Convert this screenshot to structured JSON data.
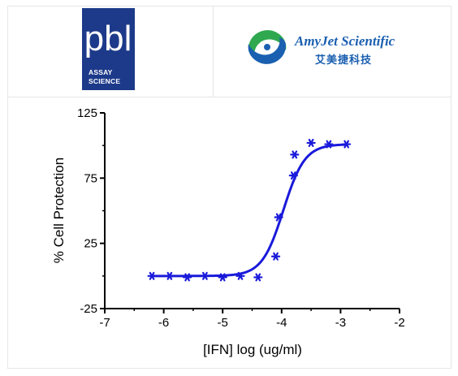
{
  "logos": {
    "pbl": {
      "mark": "pbl",
      "line1": "ASSAY",
      "line2": "SCIENCE",
      "bg_color": "#1d3a8a"
    },
    "amyjet": {
      "name": "AmyJet Scientific",
      "cn": "艾美捷科技",
      "color": "#1a5fb0",
      "icon": "amyjet-swirl-icon"
    }
  },
  "chart_data": {
    "type": "scatter",
    "title": "",
    "xlabel": "[IFN] log (ug/ml)",
    "ylabel": "% Cell Protection",
    "xlim": [
      -7,
      -2
    ],
    "ylim": [
      -25,
      125
    ],
    "xticks": [
      "-7",
      "-6",
      "-5",
      "-4",
      "-3",
      "-2"
    ],
    "yticks": [
      "-25",
      "25",
      "75",
      "125"
    ],
    "grid": false,
    "series": [
      {
        "color": "#1a1adb",
        "marker": "asterisk",
        "x": [
          -6.2,
          -5.9,
          -5.6,
          -5.3,
          -5.0,
          -4.7,
          -4.4,
          -4.1,
          -4.05,
          -3.8,
          -3.78,
          -3.5,
          -3.2,
          -2.9
        ],
        "y": [
          0,
          0,
          -1,
          0,
          -1,
          0,
          -1,
          15,
          45,
          77,
          93,
          102,
          101,
          101
        ]
      }
    ],
    "fit_curve": {
      "bottom": 0,
      "top": 101,
      "log_ec50": -3.97,
      "hill_slope": 2.4,
      "color": "#1a1adb"
    }
  }
}
